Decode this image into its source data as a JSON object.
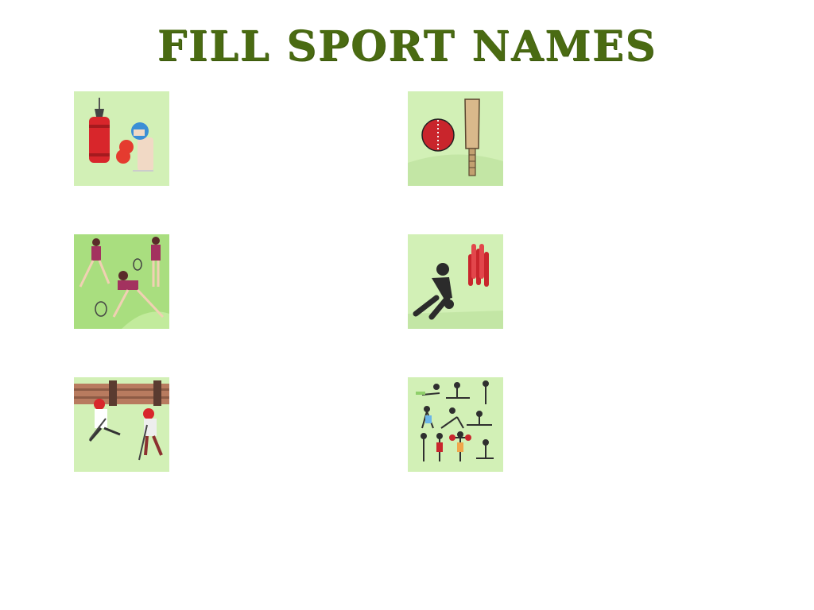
{
  "title": "FILL SPORT NAMES",
  "colors": {
    "title": "#4a6b12",
    "tile_background": "#d2f0b6",
    "tile_background_alt": "#a9de7f"
  },
  "tiles": [
    {
      "icon": "boxing-icon"
    },
    {
      "icon": "cricket-icon"
    },
    {
      "icon": "badminton-icon"
    },
    {
      "icon": "bowling-icon"
    },
    {
      "icon": "hockey-icon"
    },
    {
      "icon": "exercise-icon"
    }
  ]
}
